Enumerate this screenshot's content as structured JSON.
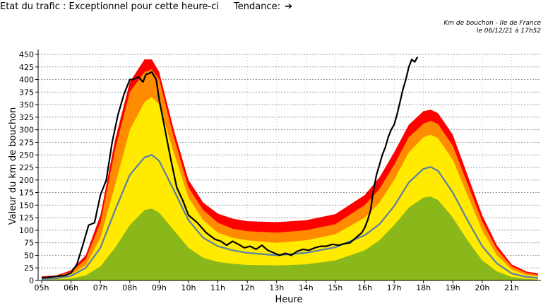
{
  "header": {
    "status_label": "Etat du trafic : ",
    "status_value": "Exceptionnel pour cette heure-ci",
    "trend_label": "Tendance:",
    "trend_icon": "arrow-right-icon",
    "caption_line1": "Km de bouchon - Ile de France",
    "caption_line2": "le 06/12/21 à 17h52"
  },
  "colors": {
    "red": "#ff0000",
    "orange": "#ff8c00",
    "yellow": "#ffea00",
    "green": "#8ab81a",
    "mean_line": "#5a7fa8",
    "today_line": "#000000"
  },
  "chart_data": {
    "type": "area",
    "xlabel": "Heure",
    "ylabel": "Valeur du  km de bouchon",
    "x_tick_labels": [
      "05h",
      "06h",
      "07h",
      "08h",
      "09h",
      "10h",
      "11h",
      "12h",
      "13h",
      "14h",
      "15h",
      "16h",
      "17h",
      "18h",
      "19h",
      "20h",
      "21h"
    ],
    "x_ticks": [
      5,
      6,
      7,
      8,
      9,
      10,
      11,
      12,
      13,
      14,
      15,
      16,
      17,
      18,
      19,
      20,
      21
    ],
    "xlim": [
      5,
      22
    ],
    "y_ticks": [
      0,
      25,
      50,
      75,
      100,
      125,
      150,
      175,
      200,
      225,
      250,
      275,
      300,
      325,
      350,
      375,
      400,
      425,
      450
    ],
    "ylim": [
      0,
      450
    ],
    "grid": true,
    "bands": [
      {
        "name": "red",
        "x": [
          5,
          5.5,
          6,
          6.5,
          7,
          7.5,
          8,
          8.5,
          8.75,
          9,
          9.5,
          10,
          10.5,
          11,
          11.5,
          12,
          13,
          14,
          15,
          16,
          16.5,
          17,
          17.5,
          18,
          18.25,
          18.5,
          19,
          19.5,
          20,
          20.5,
          21,
          21.5,
          21.9
        ],
        "y": [
          8,
          10,
          20,
          50,
          130,
          280,
          395,
          440,
          440,
          415,
          300,
          200,
          155,
          133,
          123,
          118,
          116,
          120,
          132,
          170,
          205,
          255,
          310,
          337,
          340,
          333,
          290,
          210,
          130,
          70,
          32,
          18,
          14
        ]
      },
      {
        "name": "orange",
        "x": [
          5,
          5.5,
          6,
          6.5,
          7,
          7.5,
          8,
          8.5,
          8.75,
          9,
          9.5,
          10,
          10.5,
          11,
          11.5,
          12,
          13,
          14,
          15,
          16,
          16.5,
          17,
          17.5,
          18,
          18.25,
          18.5,
          19,
          19.5,
          20,
          20.5,
          21,
          21.5,
          21.9
        ],
        "y": [
          6,
          8,
          17,
          42,
          115,
          260,
          375,
          415,
          420,
          400,
          285,
          185,
          140,
          115,
          103,
          98,
          95,
          100,
          112,
          150,
          182,
          230,
          285,
          312,
          318,
          311,
          268,
          193,
          118,
          62,
          28,
          15,
          11
        ]
      },
      {
        "name": "yellow",
        "x": [
          5,
          5.5,
          6,
          6.5,
          7,
          7.5,
          8,
          8.5,
          8.75,
          9,
          9.5,
          10,
          10.5,
          11,
          11.5,
          12,
          13,
          14,
          15,
          16,
          16.5,
          17,
          17.5,
          18,
          18.25,
          18.5,
          19,
          19.5,
          20,
          20.5,
          21,
          21.5,
          21.9
        ],
        "y": [
          4,
          6,
          12,
          30,
          85,
          190,
          300,
          355,
          365,
          350,
          255,
          165,
          120,
          95,
          85,
          80,
          75,
          80,
          92,
          125,
          155,
          200,
          255,
          285,
          290,
          283,
          240,
          170,
          100,
          50,
          22,
          11,
          8
        ]
      },
      {
        "name": "green",
        "x": [
          5,
          5.5,
          6,
          6.5,
          7,
          7.5,
          8,
          8.5,
          8.75,
          9,
          9.5,
          10,
          10.5,
          11,
          11.5,
          12,
          13,
          14,
          15,
          16,
          16.5,
          17,
          17.5,
          18,
          18.25,
          18.5,
          19,
          19.5,
          20,
          20.5,
          21,
          21.5,
          21.9
        ],
        "y": [
          1,
          2,
          4,
          10,
          28,
          65,
          110,
          140,
          143,
          135,
          100,
          65,
          45,
          37,
          33,
          31,
          30,
          32,
          40,
          60,
          80,
          110,
          145,
          165,
          167,
          160,
          125,
          80,
          40,
          18,
          7,
          3,
          2
        ]
      }
    ],
    "series": [
      {
        "name": "mean",
        "x": [
          5,
          5.5,
          6,
          6.5,
          7,
          7.5,
          8,
          8.5,
          8.75,
          9,
          9.5,
          10,
          10.5,
          11,
          11.5,
          12,
          13,
          14,
          15,
          16,
          16.5,
          17,
          17.5,
          18,
          18.25,
          18.5,
          19,
          19.5,
          20,
          20.5,
          21,
          21.5,
          21.9
        ],
        "y": [
          3,
          4,
          9,
          25,
          65,
          140,
          210,
          245,
          250,
          238,
          180,
          120,
          85,
          68,
          60,
          55,
          50,
          55,
          66,
          90,
          112,
          148,
          195,
          222,
          226,
          218,
          175,
          120,
          68,
          34,
          14,
          7,
          5
        ]
      },
      {
        "name": "today",
        "x": [
          5,
          5.2,
          5.5,
          5.8,
          6,
          6.2,
          6.4,
          6.6,
          6.8,
          7,
          7.2,
          7.4,
          7.6,
          7.8,
          8,
          8.1,
          8.3,
          8.45,
          8.55,
          8.65,
          8.75,
          8.9,
          9,
          9.2,
          9.4,
          9.6,
          9.8,
          10,
          10.3,
          10.6,
          10.9,
          11.1,
          11.3,
          11.5,
          11.7,
          11.9,
          12.1,
          12.3,
          12.5,
          12.7,
          12.9,
          13.1,
          13.3,
          13.5,
          13.7,
          13.9,
          14.1,
          14.3,
          14.5,
          14.7,
          14.9,
          15.1,
          15.3,
          15.5,
          15.7,
          15.9,
          16,
          16.1,
          16.2,
          16.3,
          16.4,
          16.5,
          16.6,
          16.7,
          16.8,
          16.9,
          17,
          17.1,
          17.2,
          17.3,
          17.4,
          17.5,
          17.6,
          17.7,
          17.8
        ],
        "y": [
          5,
          6,
          8,
          10,
          15,
          32,
          70,
          110,
          115,
          170,
          200,
          275,
          330,
          370,
          400,
          400,
          405,
          395,
          410,
          412,
          415,
          400,
          360,
          300,
          240,
          185,
          160,
          130,
          115,
          95,
          82,
          78,
          70,
          78,
          72,
          65,
          68,
          62,
          70,
          60,
          55,
          50,
          54,
          50,
          58,
          62,
          60,
          65,
          68,
          68,
          72,
          70,
          73,
          75,
          85,
          95,
          105,
          120,
          140,
          180,
          210,
          230,
          250,
          265,
          285,
          300,
          310,
          330,
          355,
          380,
          400,
          425,
          440,
          435,
          445
        ]
      }
    ]
  }
}
